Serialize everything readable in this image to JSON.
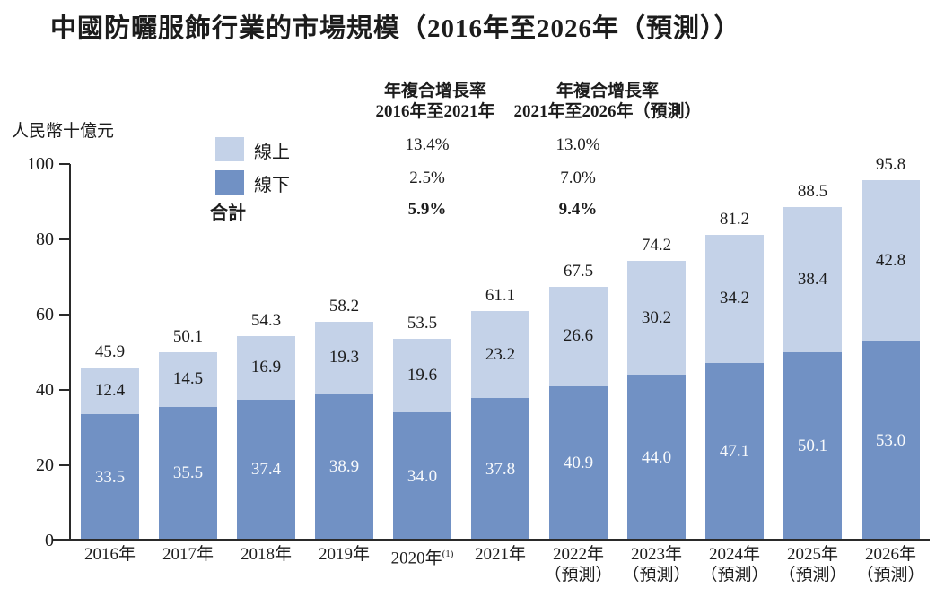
{
  "title": "中國防曬服飾行業的市場規模（2016年至2026年（預測））",
  "chart_data": {
    "type": "bar",
    "stacked": true,
    "unit_label": "人民幣十億元",
    "ylim": [
      0,
      100
    ],
    "yticks": [
      0,
      20,
      40,
      60,
      80,
      100
    ],
    "grid": false,
    "categories": [
      {
        "label": "2016年",
        "sup": "",
        "note": ""
      },
      {
        "label": "2017年",
        "sup": "",
        "note": ""
      },
      {
        "label": "2018年",
        "sup": "",
        "note": ""
      },
      {
        "label": "2019年",
        "sup": "",
        "note": ""
      },
      {
        "label": "2020年",
        "sup": "(1)",
        "note": ""
      },
      {
        "label": "2021年",
        "sup": "",
        "note": ""
      },
      {
        "label": "2022年",
        "sup": "",
        "note": "（預測）"
      },
      {
        "label": "2023年",
        "sup": "",
        "note": "（預測）"
      },
      {
        "label": "2024年",
        "sup": "",
        "note": "（預測）"
      },
      {
        "label": "2025年",
        "sup": "",
        "note": "（預測）"
      },
      {
        "label": "2026年",
        "sup": "",
        "note": "（預測）"
      }
    ],
    "series": [
      {
        "name": "線上",
        "color": "#c4d2e8",
        "values": [
          12.4,
          14.5,
          16.9,
          19.3,
          19.6,
          23.2,
          26.6,
          30.2,
          34.2,
          38.4,
          42.8
        ]
      },
      {
        "name": "線下",
        "color": "#7191c4",
        "values": [
          33.5,
          35.5,
          37.4,
          38.9,
          34.0,
          37.8,
          40.9,
          44.0,
          47.1,
          50.1,
          53.0
        ]
      }
    ],
    "totals": [
      45.9,
      50.1,
      54.3,
      58.2,
      53.5,
      61.1,
      67.5,
      74.2,
      81.2,
      88.5,
      95.8
    ],
    "cagr": {
      "header_col1": [
        "年複合增長率",
        "2016年至2021年"
      ],
      "header_col2": [
        "年複合增長率",
        "2021年至2026年（預測）"
      ],
      "rows": [
        {
          "label": "線上",
          "col1": "13.4%",
          "col2": "13.0%"
        },
        {
          "label": "線下",
          "col1": "2.5%",
          "col2": "7.0%"
        },
        {
          "label": "合計",
          "col1": "5.9%",
          "col2": "9.4%"
        }
      ]
    },
    "axis_color": "#2a2a2a"
  }
}
